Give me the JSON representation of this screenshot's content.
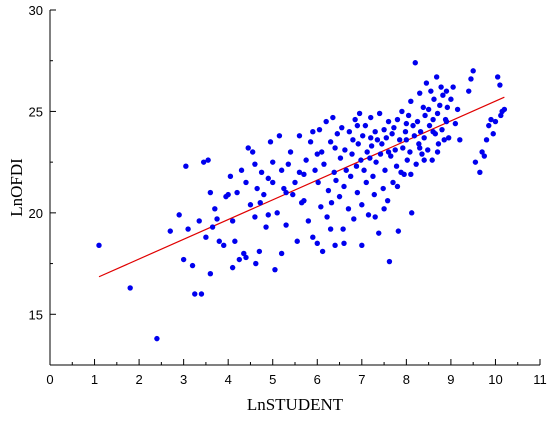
{
  "chart_data": {
    "type": "scatter",
    "title": "",
    "xlabel": "LnSTUDENT",
    "ylabel": "LnOFDI",
    "xlim": [
      0,
      11
    ],
    "ylim": [
      12.5,
      30
    ],
    "xticks": [
      "0",
      "1",
      "2",
      "3",
      "4",
      "5",
      "6",
      "7",
      "8",
      "9",
      "10",
      "11"
    ],
    "yticks": [
      "15",
      "20",
      "25",
      "30"
    ],
    "grid": false,
    "colors": {
      "points": "#0000ee",
      "fit_line": "#e00000",
      "axes": "#000000"
    },
    "fit_line": {
      "x": [
        1.1,
        10.2
      ],
      "y": [
        16.85,
        25.7
      ]
    },
    "series": [
      {
        "points": [
          [
            1.1,
            18.4
          ],
          [
            1.8,
            16.3
          ],
          [
            2.4,
            13.8
          ],
          [
            2.7,
            19.1
          ],
          [
            2.9,
            19.9
          ],
          [
            3.0,
            17.7
          ],
          [
            3.05,
            22.3
          ],
          [
            3.1,
            19.2
          ],
          [
            3.2,
            17.4
          ],
          [
            3.25,
            16.0
          ],
          [
            3.35,
            19.6
          ],
          [
            3.4,
            16.0
          ],
          [
            3.45,
            22.5
          ],
          [
            3.5,
            18.8
          ],
          [
            3.55,
            22.6
          ],
          [
            3.6,
            17.0
          ],
          [
            3.65,
            19.3
          ],
          [
            3.7,
            20.2
          ],
          [
            3.75,
            19.7
          ],
          [
            3.8,
            18.6
          ],
          [
            3.9,
            18.4
          ],
          [
            3.95,
            20.8
          ],
          [
            4.0,
            20.9
          ],
          [
            4.05,
            21.8
          ],
          [
            4.1,
            17.3
          ],
          [
            4.15,
            18.6
          ],
          [
            4.2,
            21.0
          ],
          [
            4.25,
            17.7
          ],
          [
            4.3,
            22.1
          ],
          [
            4.35,
            18.0
          ],
          [
            4.4,
            21.5
          ],
          [
            4.45,
            23.2
          ],
          [
            4.5,
            20.4
          ],
          [
            4.55,
            23.0
          ],
          [
            4.6,
            19.8
          ],
          [
            4.62,
            17.5
          ],
          [
            4.65,
            21.2
          ],
          [
            4.7,
            18.1
          ],
          [
            4.72,
            20.5
          ],
          [
            4.75,
            22.0
          ],
          [
            4.8,
            20.9
          ],
          [
            4.85,
            19.3
          ],
          [
            4.9,
            21.7
          ],
          [
            4.95,
            23.5
          ],
          [
            5.0,
            22.5
          ],
          [
            5.05,
            17.2
          ],
          [
            5.1,
            20.0
          ],
          [
            5.15,
            23.8
          ],
          [
            5.2,
            22.1
          ],
          [
            5.25,
            21.2
          ],
          [
            5.3,
            19.4
          ],
          [
            5.35,
            22.4
          ],
          [
            5.4,
            23.0
          ],
          [
            5.45,
            20.9
          ],
          [
            5.5,
            21.5
          ],
          [
            5.55,
            18.6
          ],
          [
            5.6,
            23.8
          ],
          [
            5.65,
            20.5
          ],
          [
            5.7,
            21.9
          ],
          [
            5.75,
            22.6
          ],
          [
            5.8,
            19.6
          ],
          [
            5.85,
            23.5
          ],
          [
            5.9,
            24.0
          ],
          [
            5.95,
            22.1
          ],
          [
            6.0,
            18.5
          ],
          [
            6.02,
            21.5
          ],
          [
            6.05,
            24.1
          ],
          [
            6.08,
            20.3
          ],
          [
            6.1,
            23.0
          ],
          [
            6.12,
            18.1
          ],
          [
            6.15,
            22.4
          ],
          [
            6.2,
            24.5
          ],
          [
            6.22,
            19.8
          ],
          [
            6.25,
            21.1
          ],
          [
            6.3,
            23.5
          ],
          [
            6.32,
            20.5
          ],
          [
            6.35,
            24.7
          ],
          [
            6.38,
            22.0
          ],
          [
            6.4,
            18.4
          ],
          [
            6.42,
            21.6
          ],
          [
            6.45,
            23.9
          ],
          [
            6.5,
            20.8
          ],
          [
            6.52,
            22.7
          ],
          [
            6.55,
            24.2
          ],
          [
            6.58,
            19.2
          ],
          [
            6.6,
            21.3
          ],
          [
            6.62,
            23.1
          ],
          [
            6.65,
            22.1
          ],
          [
            6.7,
            20.2
          ],
          [
            6.72,
            24.0
          ],
          [
            6.75,
            21.8
          ],
          [
            6.78,
            22.9
          ],
          [
            6.8,
            23.6
          ],
          [
            6.82,
            19.7
          ],
          [
            6.85,
            24.6
          ],
          [
            6.88,
            22.3
          ],
          [
            6.9,
            21.0
          ],
          [
            6.92,
            23.4
          ],
          [
            6.95,
            24.9
          ],
          [
            6.98,
            22.6
          ],
          [
            7.0,
            20.4
          ],
          [
            7.02,
            23.8
          ],
          [
            7.05,
            22.1
          ],
          [
            7.08,
            24.3
          ],
          [
            7.1,
            21.5
          ],
          [
            7.12,
            23.0
          ],
          [
            7.15,
            19.9
          ],
          [
            7.18,
            22.7
          ],
          [
            7.2,
            24.7
          ],
          [
            7.22,
            23.3
          ],
          [
            7.25,
            21.8
          ],
          [
            7.28,
            20.9
          ],
          [
            7.3,
            24.0
          ],
          [
            7.32,
            22.5
          ],
          [
            7.35,
            23.6
          ],
          [
            7.38,
            19.0
          ],
          [
            7.4,
            24.9
          ],
          [
            7.42,
            22.9
          ],
          [
            7.45,
            23.4
          ],
          [
            7.48,
            21.2
          ],
          [
            7.5,
            24.1
          ],
          [
            7.52,
            22.1
          ],
          [
            7.55,
            23.7
          ],
          [
            7.58,
            20.6
          ],
          [
            7.6,
            24.5
          ],
          [
            7.62,
            17.6
          ],
          [
            7.65,
            22.8
          ],
          [
            7.68,
            23.9
          ],
          [
            7.7,
            21.5
          ],
          [
            7.72,
            24.2
          ],
          [
            7.75,
            23.1
          ],
          [
            7.78,
            22.3
          ],
          [
            7.8,
            24.6
          ],
          [
            7.82,
            19.1
          ],
          [
            7.85,
            23.6
          ],
          [
            7.88,
            22.0
          ],
          [
            7.9,
            25.0
          ],
          [
            7.92,
            23.2
          ],
          [
            7.95,
            21.9
          ],
          [
            7.98,
            24.0
          ],
          [
            8.0,
            23.6
          ],
          [
            8.02,
            22.6
          ],
          [
            8.05,
            24.8
          ],
          [
            8.08,
            23.0
          ],
          [
            8.1,
            25.5
          ],
          [
            8.12,
            20.0
          ],
          [
            8.15,
            24.3
          ],
          [
            8.18,
            23.8
          ],
          [
            8.2,
            27.4
          ],
          [
            8.22,
            22.4
          ],
          [
            8.25,
            24.5
          ],
          [
            8.28,
            23.4
          ],
          [
            8.3,
            25.9
          ],
          [
            8.32,
            24.0
          ],
          [
            8.35,
            22.9
          ],
          [
            8.38,
            25.2
          ],
          [
            8.4,
            23.7
          ],
          [
            8.42,
            24.8
          ],
          [
            8.45,
            26.4
          ],
          [
            8.48,
            23.1
          ],
          [
            8.5,
            25.1
          ],
          [
            8.52,
            24.3
          ],
          [
            8.55,
            26.0
          ],
          [
            8.58,
            22.6
          ],
          [
            8.6,
            24.6
          ],
          [
            8.62,
            25.6
          ],
          [
            8.65,
            23.9
          ],
          [
            8.68,
            26.7
          ],
          [
            8.7,
            24.9
          ],
          [
            8.72,
            23.4
          ],
          [
            8.75,
            25.3
          ],
          [
            8.78,
            26.2
          ],
          [
            8.8,
            24.1
          ],
          [
            8.82,
            25.8
          ],
          [
            8.85,
            23.6
          ],
          [
            8.88,
            24.6
          ],
          [
            8.9,
            26.0
          ],
          [
            8.92,
            25.2
          ],
          [
            8.95,
            23.7
          ],
          [
            9.0,
            25.6
          ],
          [
            9.05,
            26.2
          ],
          [
            9.1,
            24.4
          ],
          [
            9.15,
            25.1
          ],
          [
            9.4,
            26.0
          ],
          [
            9.45,
            26.6
          ],
          [
            9.5,
            27.0
          ],
          [
            9.55,
            22.5
          ],
          [
            9.65,
            22.0
          ],
          [
            9.7,
            23.0
          ],
          [
            9.75,
            22.8
          ],
          [
            9.8,
            23.6
          ],
          [
            9.85,
            24.3
          ],
          [
            9.9,
            24.6
          ],
          [
            9.95,
            23.9
          ],
          [
            10.0,
            24.5
          ],
          [
            10.05,
            26.7
          ],
          [
            10.1,
            26.3
          ],
          [
            10.12,
            24.8
          ],
          [
            10.15,
            25.0
          ],
          [
            10.2,
            25.1
          ],
          [
            3.6,
            21.0
          ],
          [
            4.1,
            19.6
          ],
          [
            4.4,
            17.8
          ],
          [
            4.9,
            19.9
          ],
          [
            5.2,
            18.0
          ],
          [
            5.6,
            22.0
          ],
          [
            5.9,
            18.8
          ],
          [
            6.3,
            19.2
          ],
          [
            6.6,
            18.5
          ],
          [
            7.0,
            18.4
          ],
          [
            7.3,
            19.8
          ],
          [
            7.5,
            20.2
          ],
          [
            7.8,
            21.3
          ],
          [
            8.1,
            21.9
          ],
          [
            8.4,
            22.6
          ],
          [
            8.7,
            23.0
          ],
          [
            9.2,
            23.6
          ],
          [
            6.0,
            22.9
          ],
          [
            6.4,
            23.2
          ],
          [
            6.9,
            24.3
          ],
          [
            7.2,
            23.7
          ],
          [
            7.6,
            23.0
          ],
          [
            8.0,
            24.4
          ],
          [
            8.3,
            23.2
          ],
          [
            8.6,
            24.0
          ],
          [
            8.9,
            24.5
          ],
          [
            5.0,
            21.5
          ],
          [
            5.3,
            21.0
          ],
          [
            5.7,
            20.6
          ],
          [
            4.6,
            22.4
          ]
        ]
      }
    ]
  }
}
